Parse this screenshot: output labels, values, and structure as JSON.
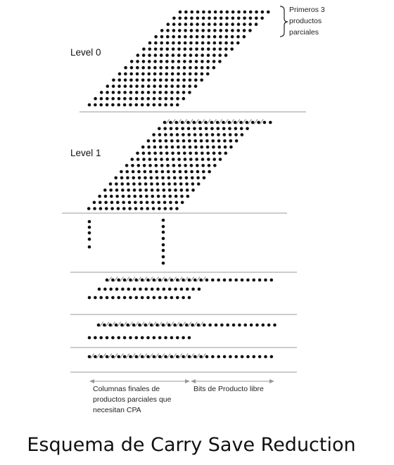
{
  "diagram": {
    "level_labels": [
      "Level 0",
      "Level 1"
    ],
    "annotation_top_right": [
      "Primeros 3",
      "productos",
      "parciales"
    ],
    "bottom_left_label": [
      "Columnas finales de",
      "productos parciales que",
      "necesitan CPA"
    ],
    "bottom_right_label": "Bits de Producto libre",
    "caption": "Esquema de Carry Save Reduction",
    "colors": {
      "dot": "#111111",
      "rule": "#9a9a9a",
      "arrow": "#999999",
      "slash": "#9a9a9a"
    }
  }
}
